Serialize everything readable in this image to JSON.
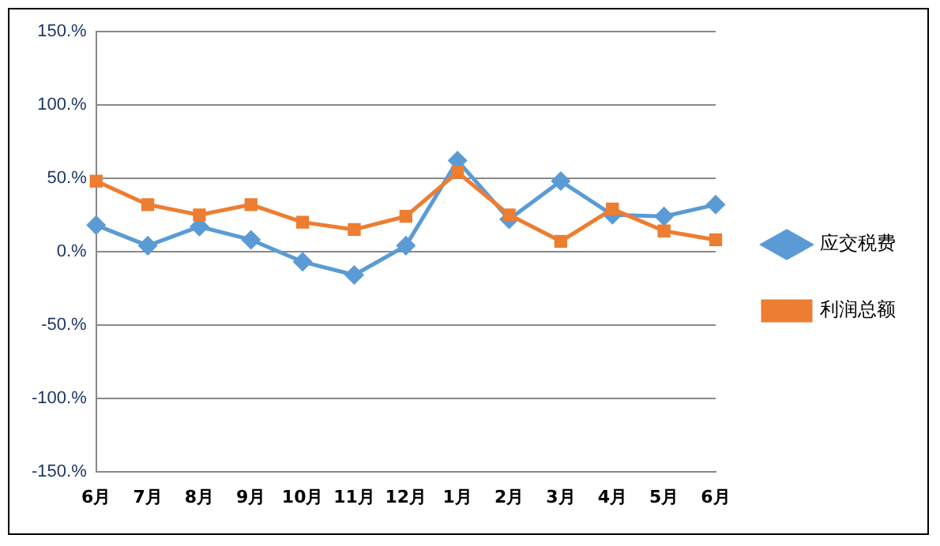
{
  "chart_data": {
    "type": "line",
    "categories": [
      "6月",
      "7月",
      "8月",
      "9月",
      "10月",
      "11月",
      "12月",
      "1月",
      "2月",
      "3月",
      "4月",
      "5月",
      "6月"
    ],
    "series": [
      {
        "name": "应交税费",
        "color": "#5b9bd5",
        "marker": "diamond",
        "values": [
          18,
          4,
          17,
          8,
          -7,
          -16,
          4,
          62,
          22,
          48,
          25,
          24,
          32
        ]
      },
      {
        "name": "利润总额",
        "color": "#ed7d31",
        "marker": "square",
        "values": [
          48,
          32,
          25,
          32,
          20,
          15,
          24,
          54,
          25,
          7,
          29,
          14,
          8
        ]
      }
    ],
    "ylim": [
      -150,
      150
    ],
    "yticks": [
      {
        "value": -150,
        "label": "-150.%"
      },
      {
        "value": -100,
        "label": "-100.%"
      },
      {
        "value": -50,
        "label": "-50.%"
      },
      {
        "value": 0,
        "label": "0.%"
      },
      {
        "value": 50,
        "label": "50.%"
      },
      {
        "value": 100,
        "label": "100.%"
      },
      {
        "value": 150,
        "label": "150.%"
      }
    ],
    "grid": "y",
    "legend": "right"
  }
}
